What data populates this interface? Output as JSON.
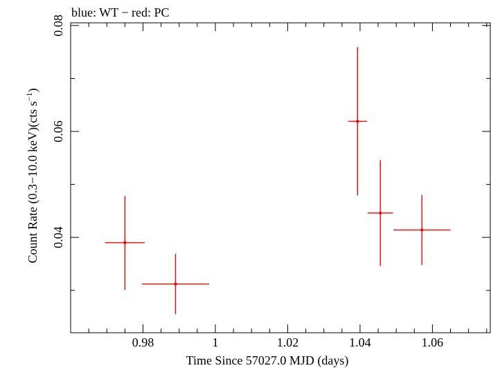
{
  "chart_data": {
    "type": "scatter",
    "title": "blue: WT − red: PC",
    "xlabel": "Time Since 57027.0 MJD (days)",
    "ylabel_main": "Count Rate (0.3−10.0 keV)(cts s",
    "ylabel_sup": "−1",
    "ylabel_close": ")",
    "xlim": [
      0.96,
      1.076
    ],
    "ylim": [
      0.022,
      0.0805
    ],
    "x_ticks": [
      {
        "value": 0.98,
        "label": "0.98"
      },
      {
        "value": 1.0,
        "label": "1"
      },
      {
        "value": 1.02,
        "label": "1.02"
      },
      {
        "value": 1.04,
        "label": "1.04"
      },
      {
        "value": 1.06,
        "label": "1.06"
      }
    ],
    "y_ticks": [
      {
        "value": 0.04,
        "label": "0.04"
      },
      {
        "value": 0.06,
        "label": "0.06"
      },
      {
        "value": 0.08,
        "label": "0.08"
      }
    ],
    "y_minor_ticks": [
      0.03,
      0.05,
      0.07
    ],
    "x_minor_step": 0.005,
    "grid": false,
    "series": [
      {
        "color": "#ff0000",
        "points": [
          {
            "x": 0.975,
            "xerr_low": 0.0055,
            "xerr_high": 0.0055,
            "y": 0.039,
            "yerr_low": 0.0089,
            "yerr_high": 0.0088
          },
          {
            "x": 0.989,
            "xerr_low": 0.0093,
            "xerr_high": 0.0093,
            "y": 0.0312,
            "yerr_low": 0.0057,
            "yerr_high": 0.0057
          },
          {
            "x": 1.0393,
            "xerr_low": 0.0026,
            "xerr_high": 0.0026,
            "y": 0.0619,
            "yerr_low": 0.014,
            "yerr_high": 0.014
          },
          {
            "x": 1.0456,
            "xerr_low": 0.0035,
            "xerr_high": 0.0035,
            "y": 0.0446,
            "yerr_low": 0.01,
            "yerr_high": 0.01
          },
          {
            "x": 1.0571,
            "xerr_low": 0.0079,
            "xerr_high": 0.0079,
            "y": 0.0414,
            "yerr_low": 0.0066,
            "yerr_high": 0.0066
          }
        ]
      }
    ]
  }
}
